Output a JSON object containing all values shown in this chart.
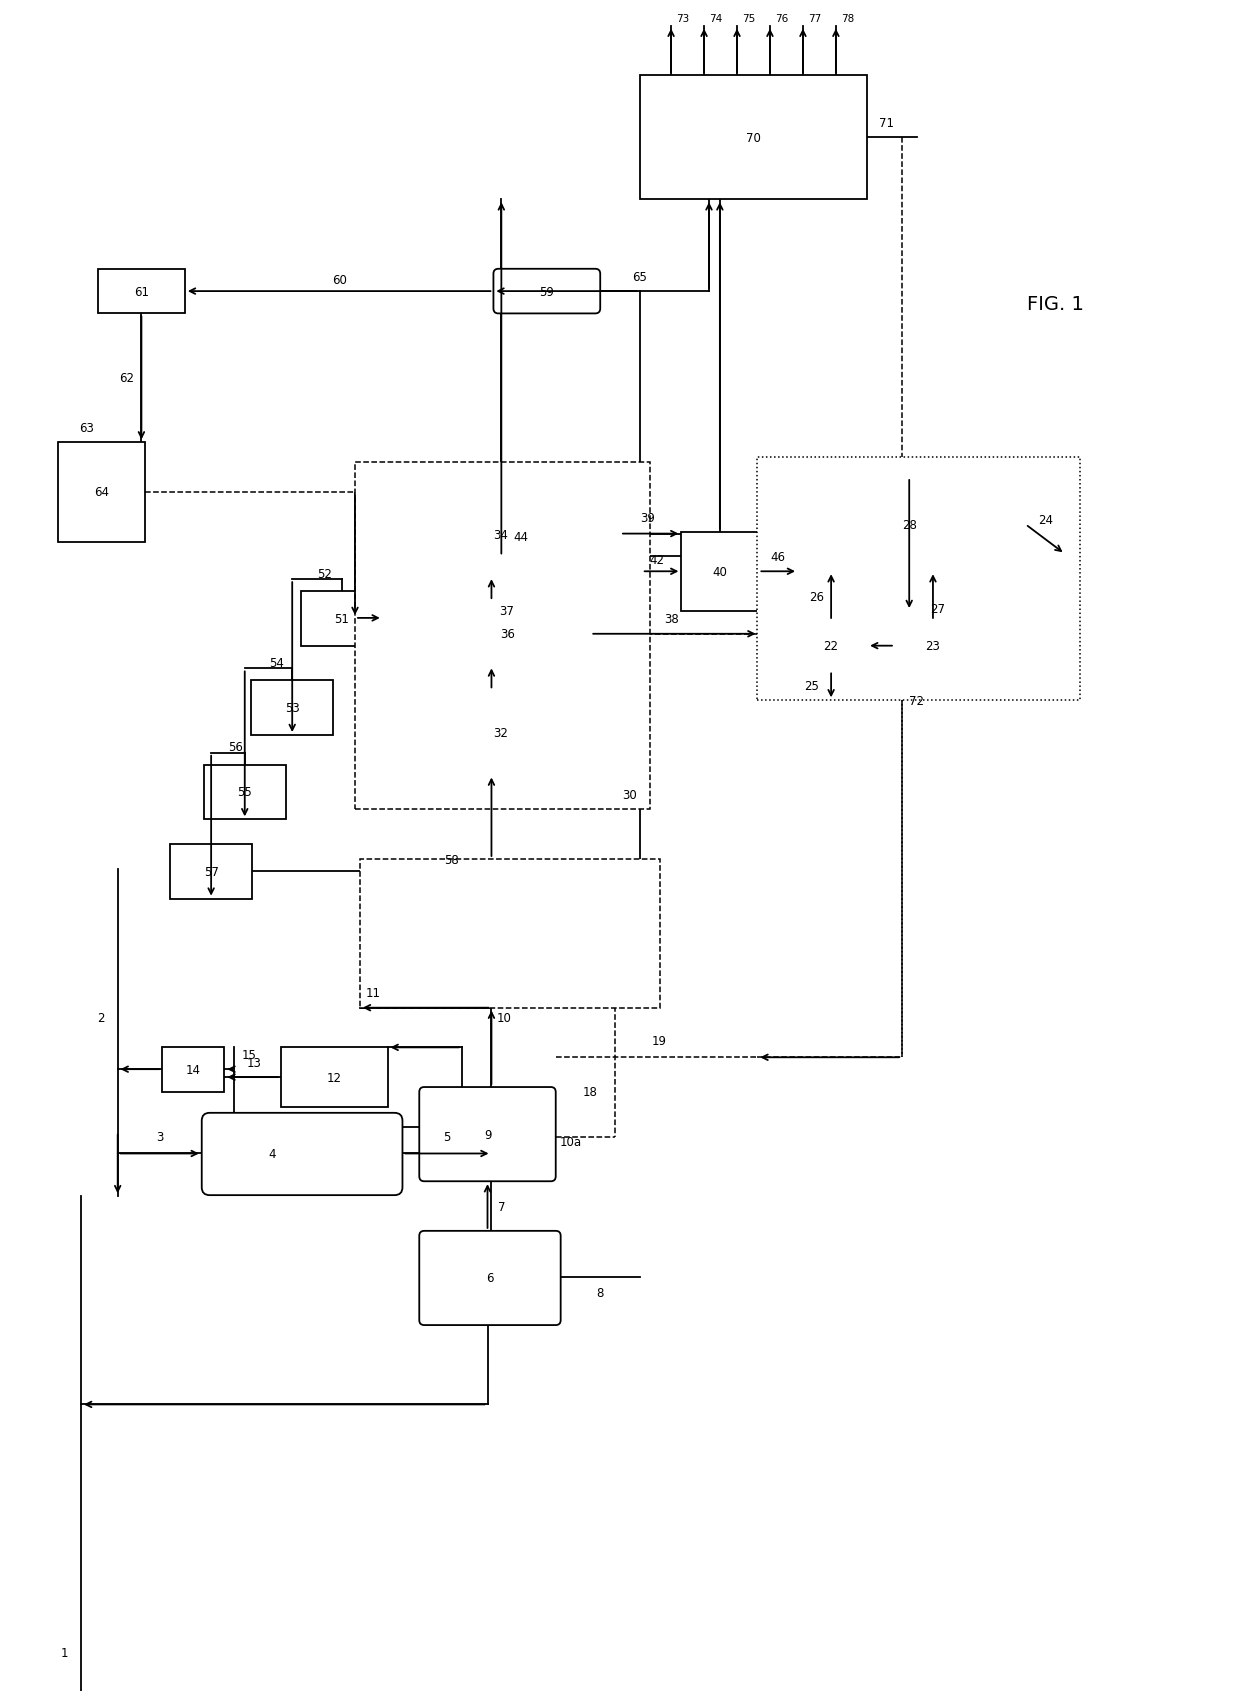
{
  "fig_width": 12.4,
  "fig_height": 16.99,
  "bg_color": "#ffffff",
  "title": "FIG. 1"
}
